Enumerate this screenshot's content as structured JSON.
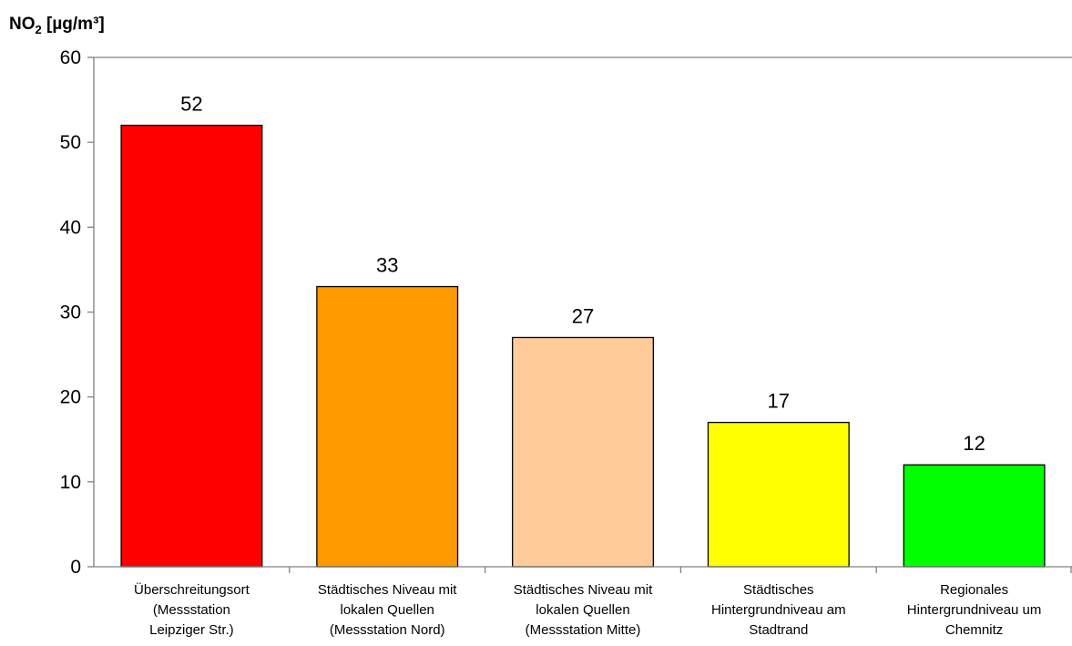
{
  "chart_data": {
    "type": "bar",
    "ylabel_main": "NO",
    "ylabel_sub": "2",
    "ylabel_unit": " [µg/m³]",
    "ylim": [
      0,
      60
    ],
    "yticks": [
      0,
      10,
      20,
      30,
      40,
      50,
      60
    ],
    "grid": false,
    "categories": [
      [
        "Überschreitungsort",
        "(Messstation",
        "Leipziger Str.)"
      ],
      [
        "Städtisches Niveau mit",
        "lokalen Quellen",
        "(Messstation Nord)"
      ],
      [
        "Städtisches Niveau mit",
        "lokalen Quellen",
        "(Messstation Mitte)"
      ],
      [
        "Städtisches",
        "Hintergrundniveau am",
        "Stadtrand"
      ],
      [
        "Regionales",
        "Hintergrundniveau um",
        "Chemnitz"
      ]
    ],
    "values": [
      52,
      33,
      27,
      17,
      12
    ],
    "data_labels": [
      "52",
      "33",
      "27",
      "17",
      "12"
    ],
    "colors": [
      "#ff0000",
      "#ff9900",
      "#ffcc99",
      "#ffff00",
      "#00ff00"
    ]
  }
}
